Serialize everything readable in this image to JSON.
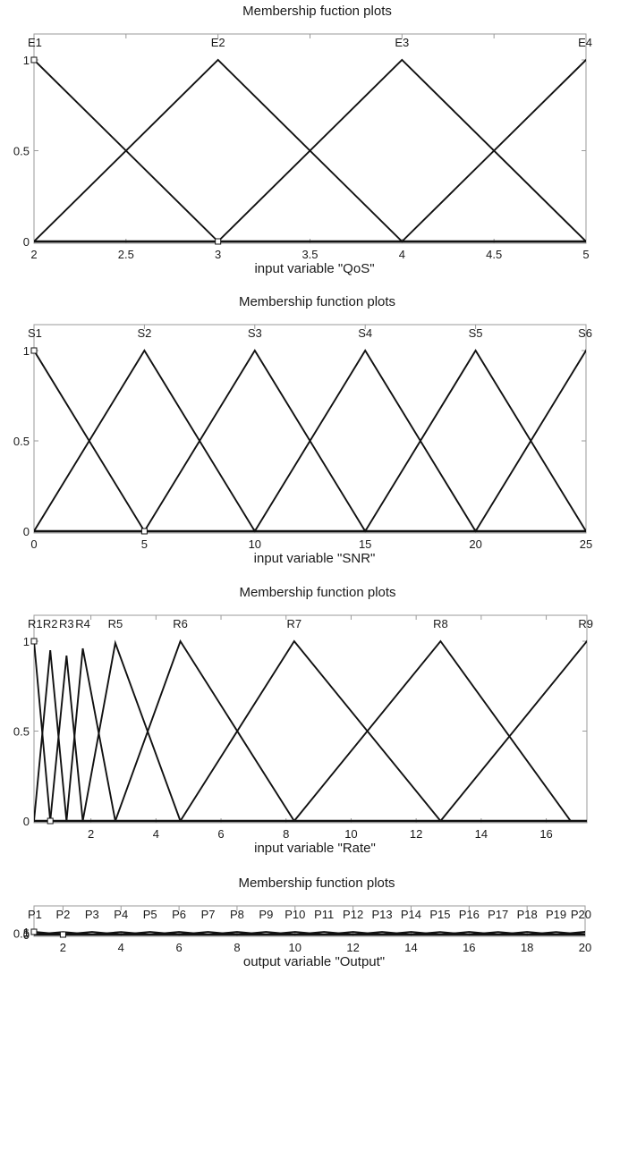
{
  "chart_data": [
    {
      "type": "line",
      "title": "Membership fuction plots",
      "xlabel": "input variable \"QoS\"",
      "xlim": [
        2,
        5
      ],
      "ylim": [
        0,
        1
      ],
      "xticks": [
        "2",
        "2.5",
        "3",
        "3.5",
        "4",
        "4.5",
        "5"
      ],
      "yticks": [
        "0",
        "0.5",
        "1"
      ],
      "series": [
        {
          "name": "E1",
          "points": [
            [
              1,
              0
            ],
            [
              2,
              1
            ],
            [
              3,
              0
            ]
          ]
        },
        {
          "name": "E2",
          "points": [
            [
              2,
              0
            ],
            [
              3,
              1
            ],
            [
              4,
              0
            ]
          ]
        },
        {
          "name": "E3",
          "points": [
            [
              3,
              0
            ],
            [
              4,
              1
            ],
            [
              5,
              0
            ]
          ]
        },
        {
          "name": "E4",
          "points": [
            [
              4,
              0
            ],
            [
              5,
              1
            ],
            [
              6,
              0
            ]
          ]
        }
      ]
    },
    {
      "type": "line",
      "title": "Membership function plots",
      "xlabel": "input variable \"SNR\"",
      "xlim": [
        0,
        25
      ],
      "ylim": [
        0,
        1
      ],
      "xticks": [
        "0",
        "5",
        "10",
        "15",
        "20",
        "25"
      ],
      "yticks": [
        "0",
        "0.5",
        "1"
      ],
      "series": [
        {
          "name": "S1",
          "points": [
            [
              -5,
              0
            ],
            [
              0,
              1
            ],
            [
              5,
              0
            ]
          ]
        },
        {
          "name": "S2",
          "points": [
            [
              0,
              0
            ],
            [
              5,
              1
            ],
            [
              10,
              0
            ]
          ]
        },
        {
          "name": "S3",
          "points": [
            [
              5,
              0
            ],
            [
              10,
              1
            ],
            [
              15,
              0
            ]
          ]
        },
        {
          "name": "S4",
          "points": [
            [
              10,
              0
            ],
            [
              15,
              1
            ],
            [
              20,
              0
            ]
          ]
        },
        {
          "name": "S5",
          "points": [
            [
              15,
              0
            ],
            [
              20,
              1
            ],
            [
              25,
              0
            ]
          ]
        },
        {
          "name": "S6",
          "points": [
            [
              20,
              0
            ],
            [
              25,
              1
            ],
            [
              30,
              0
            ]
          ]
        }
      ]
    },
    {
      "type": "line",
      "title": "Membership function plots",
      "xlabel": "input variable \"Rate\"",
      "xlim": [
        0.25,
        17.25
      ],
      "ylim": [
        0,
        1
      ],
      "xticks": [
        "2",
        "4",
        "6",
        "8",
        "10",
        "12",
        "14",
        "16"
      ],
      "yticks": [
        "0",
        "0.5",
        "1"
      ],
      "series": [
        {
          "name": "R1",
          "points": [
            [
              -0.25,
              0
            ],
            [
              0.25,
              1
            ],
            [
              0.75,
              0
            ]
          ]
        },
        {
          "name": "R2",
          "points": [
            [
              0.25,
              0
            ],
            [
              0.75,
              0.95
            ],
            [
              1.25,
              0
            ]
          ]
        },
        {
          "name": "R3",
          "points": [
            [
              0.75,
              0
            ],
            [
              1.25,
              0.92
            ],
            [
              1.75,
              0
            ]
          ]
        },
        {
          "name": "R4",
          "points": [
            [
              1.25,
              0
            ],
            [
              1.75,
              0.96
            ],
            [
              2.75,
              0
            ]
          ]
        },
        {
          "name": "R5",
          "points": [
            [
              1.75,
              0
            ],
            [
              2.75,
              0.99
            ],
            [
              4.75,
              0
            ]
          ]
        },
        {
          "name": "R6",
          "points": [
            [
              2.75,
              0
            ],
            [
              4.75,
              1
            ],
            [
              8.25,
              0
            ]
          ]
        },
        {
          "name": "R7",
          "points": [
            [
              4.75,
              0
            ],
            [
              8.25,
              1
            ],
            [
              12.75,
              0
            ]
          ]
        },
        {
          "name": "R8",
          "points": [
            [
              8.25,
              0
            ],
            [
              12.75,
              1
            ],
            [
              16.75,
              0
            ]
          ]
        },
        {
          "name": "R9",
          "points": [
            [
              12.75,
              0
            ],
            [
              17.25,
              1
            ],
            [
              21.75,
              0
            ]
          ]
        }
      ]
    },
    {
      "type": "line",
      "title": "Membership function plots",
      "xlabel": "output variable \"Output\"",
      "xlim": [
        1,
        20
      ],
      "ylim": [
        0,
        1
      ],
      "xticks": [
        "2",
        "4",
        "6",
        "8",
        "10",
        "12",
        "14",
        "16",
        "18",
        "20"
      ],
      "yticks": [
        "0",
        "0.5",
        "1"
      ],
      "series": [
        {
          "name": "P1",
          "points": [
            [
              0,
              0
            ],
            [
              1,
              1
            ],
            [
              2,
              0
            ]
          ]
        },
        {
          "name": "P2",
          "points": [
            [
              1,
              0
            ],
            [
              2,
              0.95
            ],
            [
              3,
              0
            ]
          ]
        },
        {
          "name": "P3",
          "points": [
            [
              2,
              0
            ],
            [
              3,
              0.99
            ],
            [
              4,
              0
            ]
          ]
        },
        {
          "name": "P4",
          "points": [
            [
              3,
              0
            ],
            [
              4,
              0.95
            ],
            [
              5,
              0
            ]
          ]
        },
        {
          "name": "P5",
          "points": [
            [
              4,
              0
            ],
            [
              5,
              0.98
            ],
            [
              6,
              0
            ]
          ]
        },
        {
          "name": "P6",
          "points": [
            [
              5,
              0
            ],
            [
              6,
              0.96
            ],
            [
              7,
              0
            ]
          ]
        },
        {
          "name": "P7",
          "points": [
            [
              6,
              0
            ],
            [
              7,
              0.98
            ],
            [
              8,
              0
            ]
          ]
        },
        {
          "name": "P8",
          "points": [
            [
              7,
              0
            ],
            [
              8,
              0.96
            ],
            [
              9,
              0
            ]
          ]
        },
        {
          "name": "P9",
          "points": [
            [
              8,
              0
            ],
            [
              9,
              0.97
            ],
            [
              10,
              0
            ]
          ]
        },
        {
          "name": "P10",
          "points": [
            [
              9,
              0
            ],
            [
              10,
              0.97
            ],
            [
              11,
              0
            ]
          ]
        },
        {
          "name": "P11",
          "points": [
            [
              10,
              0
            ],
            [
              11,
              0.97
            ],
            [
              12,
              0
            ]
          ]
        },
        {
          "name": "P12",
          "points": [
            [
              11,
              0
            ],
            [
              12,
              0.97
            ],
            [
              13,
              0
            ]
          ]
        },
        {
          "name": "P13",
          "points": [
            [
              12,
              0
            ],
            [
              13,
              0.96
            ],
            [
              14,
              0
            ]
          ]
        },
        {
          "name": "P14",
          "points": [
            [
              13,
              0
            ],
            [
              14,
              0.97
            ],
            [
              15,
              0
            ]
          ]
        },
        {
          "name": "P15",
          "points": [
            [
              14,
              0
            ],
            [
              15,
              0.95
            ],
            [
              16,
              0
            ]
          ]
        },
        {
          "name": "P16",
          "points": [
            [
              15,
              0
            ],
            [
              16,
              0.97
            ],
            [
              17,
              0
            ]
          ]
        },
        {
          "name": "P17",
          "points": [
            [
              16,
              0
            ],
            [
              17,
              0.95
            ],
            [
              18,
              0
            ]
          ]
        },
        {
          "name": "P18",
          "points": [
            [
              17,
              0
            ],
            [
              18,
              0.99
            ],
            [
              19,
              0
            ]
          ]
        },
        {
          "name": "P19",
          "points": [
            [
              18,
              0
            ],
            [
              19,
              0.95
            ],
            [
              20,
              0
            ]
          ]
        },
        {
          "name": "P20",
          "points": [
            [
              19,
              0
            ],
            [
              20,
              1
            ],
            [
              21,
              0
            ]
          ]
        }
      ]
    }
  ]
}
